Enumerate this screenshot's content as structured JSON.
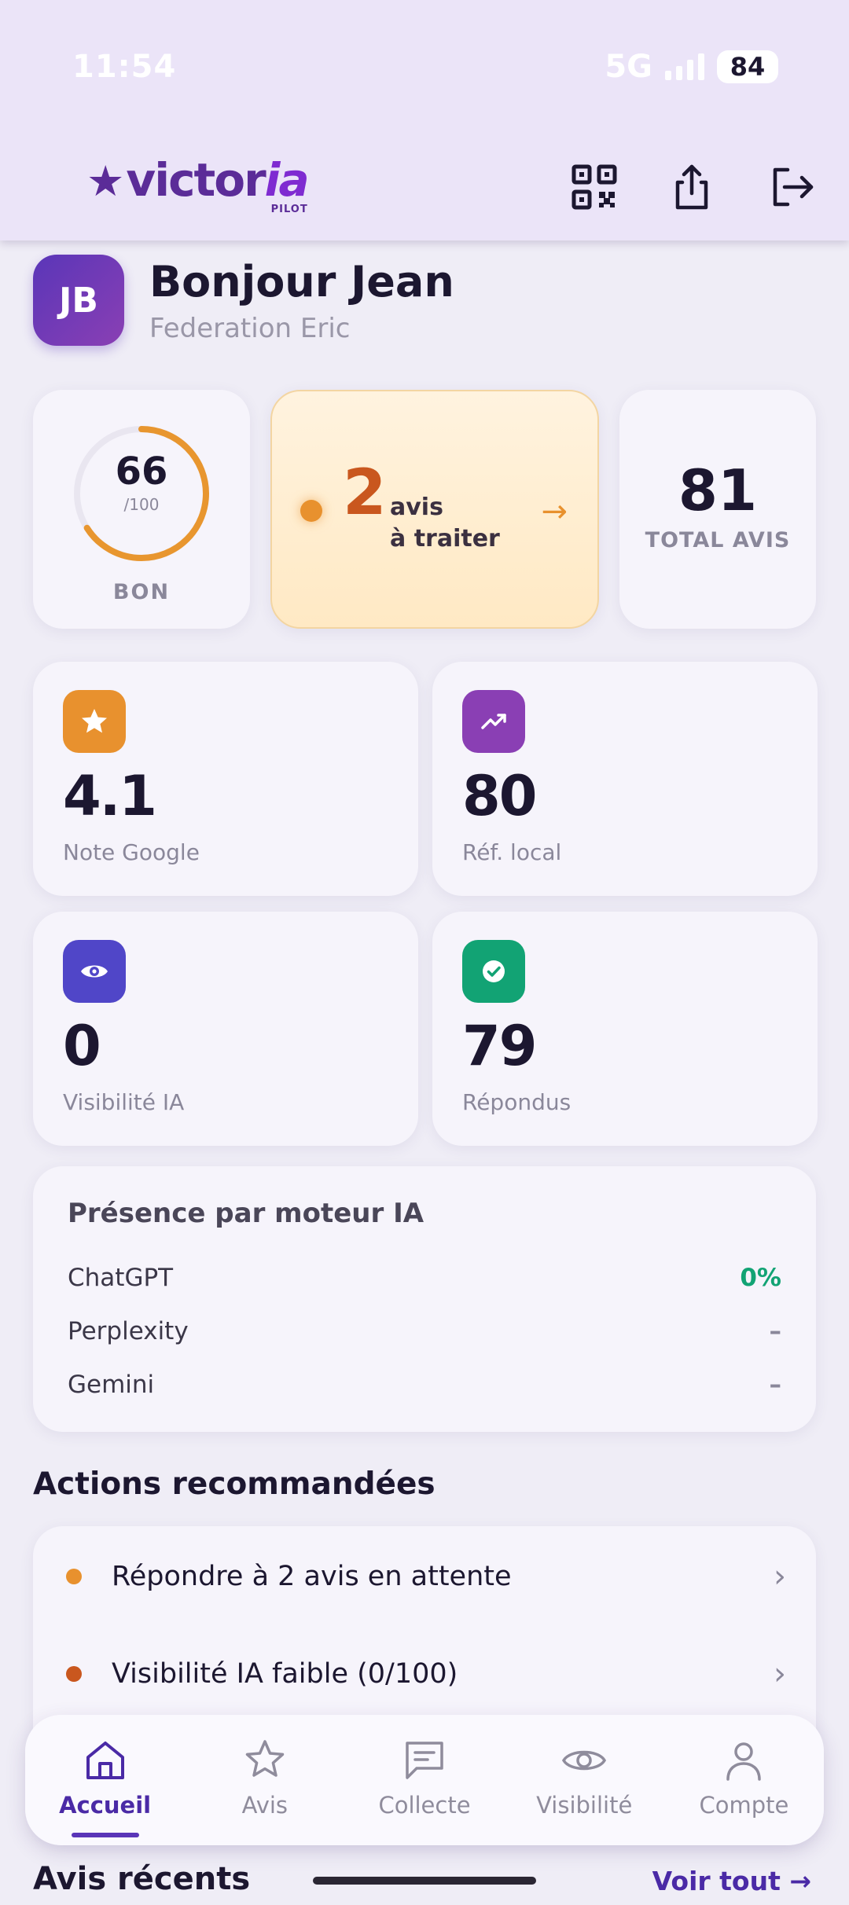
{
  "status_bar": {
    "time": "11:54",
    "network": "5G",
    "battery": "84"
  },
  "header": {
    "logo_text_a": "victor",
    "logo_text_b": "ia",
    "logo_sub": "PILOT"
  },
  "greeting": {
    "initials": "JB",
    "title": "Bonjour Jean",
    "subtitle": "Federation Eric"
  },
  "score": {
    "value": "66",
    "max": "/100",
    "label": "BON",
    "fraction": 0.66
  },
  "pending": {
    "count": "2",
    "line1": "avis",
    "line2": "à traiter",
    "arrow": "→"
  },
  "total": {
    "value": "81",
    "label": "TOTAL AVIS"
  },
  "stats": [
    {
      "value": "4.1",
      "label": "Note Google",
      "icon": "star-icon",
      "color": "#e8912e"
    },
    {
      "value": "80",
      "label": "Réf. local",
      "icon": "trending-up-icon",
      "color": "#8a3fb4"
    },
    {
      "value": "0",
      "label": "Visibilité IA",
      "icon": "eye-icon",
      "color": "#5046c8"
    },
    {
      "value": "79",
      "label": "Répondus",
      "icon": "check-circle-icon",
      "color": "#12a374"
    }
  ],
  "presence": {
    "title": "Présence par moteur IA",
    "rows": [
      {
        "name": "ChatGPT",
        "value": "0%",
        "color": "#12a374"
      },
      {
        "name": "Perplexity",
        "value": "–",
        "color": "#8a879a"
      },
      {
        "name": "Gemini",
        "value": "–",
        "color": "#8a879a"
      }
    ]
  },
  "actions": {
    "title": "Actions recommandées",
    "items": [
      {
        "text": "Répondre à 2 avis en attente",
        "color": "#e8912e"
      },
      {
        "text": "Visibilité IA faible (0/100)",
        "color": "#c9571e"
      }
    ]
  },
  "recent": {
    "title": "Avis récents",
    "link": "Voir tout →"
  },
  "tabs": [
    {
      "label": "Accueil",
      "icon": "home-icon"
    },
    {
      "label": "Avis",
      "icon": "star-outline-icon"
    },
    {
      "label": "Collecte",
      "icon": "message-square-icon"
    },
    {
      "label": "Visibilité",
      "icon": "eye-outline-icon"
    },
    {
      "label": "Compte",
      "icon": "user-icon"
    }
  ]
}
